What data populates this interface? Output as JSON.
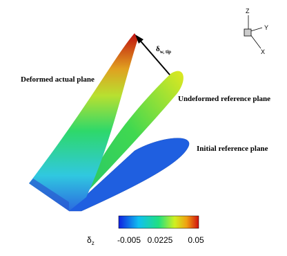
{
  "labels": {
    "deformed": "Deformed actual plane",
    "undeformed": "Undeformed reference plane",
    "initial": "Initial reference plane"
  },
  "displacement": {
    "symbol": "δ",
    "subscript": "w, tip"
  },
  "colorbar": {
    "symbol": "δ",
    "subscript": "z",
    "ticks": [
      "-0.005",
      "0.0225",
      "0.05"
    ]
  },
  "axes": {
    "z": "Z",
    "y": "Y",
    "x": "X"
  }
}
